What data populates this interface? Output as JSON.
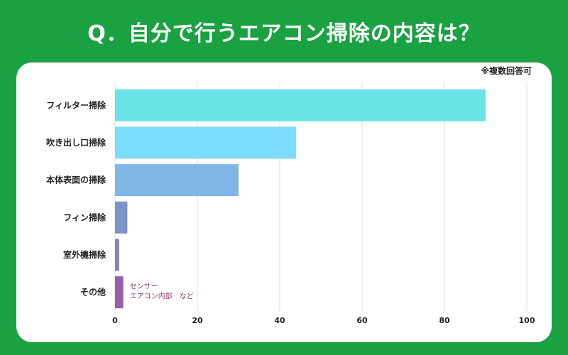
{
  "title": "Q．自分で行うエアコン掃除の内容は？",
  "note": "※複数回答可",
  "chart_data": {
    "type": "bar",
    "orientation": "horizontal",
    "categories": [
      "フィルター掃除",
      "吹き出し口掃除",
      "本体表面の掃除",
      "フィン掃除",
      "室外機掃除",
      "その他"
    ],
    "values": [
      90,
      44,
      30,
      3,
      1,
      2
    ],
    "colors": [
      "#6ae3e6",
      "#7cdcfb",
      "#7fb6e6",
      "#7d93c6",
      "#8a7ec2",
      "#9a5da8"
    ],
    "xlim": [
      0,
      100
    ],
    "xticks": [
      0,
      20,
      40,
      60,
      80,
      100
    ],
    "annotation": [
      "センサー",
      "エアコン内部　など"
    ],
    "grid": true
  }
}
